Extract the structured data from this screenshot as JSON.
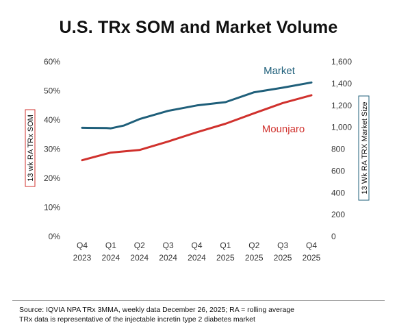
{
  "chart_data": {
    "type": "line",
    "title": "U.S. TRx SOM and Market Volume",
    "categories": [
      {
        "q": "Q4",
        "y": "2023"
      },
      {
        "q": "Q1",
        "y": "2024"
      },
      {
        "q": "Q2",
        "y": "2024"
      },
      {
        "q": "Q3",
        "y": "2024"
      },
      {
        "q": "Q4",
        "y": "2024"
      },
      {
        "q": "Q1",
        "y": "2025"
      },
      {
        "q": "Q2",
        "y": "2025"
      },
      {
        "q": "Q3",
        "y": "2025"
      },
      {
        "q": "Q4",
        "y": "2025"
      }
    ],
    "y_left": {
      "label": "13 wk RA TRx SOM",
      "min": 0,
      "max": 60,
      "ticks": [
        0,
        10,
        20,
        30,
        40,
        50,
        60
      ],
      "tick_labels": [
        "0%",
        "10%",
        "20%",
        "30%",
        "40%",
        "50%",
        "60%"
      ],
      "color": "#d0312d"
    },
    "y_right": {
      "label": "13 Wk RA TRX Market Size",
      "min": 0,
      "max": 1600,
      "ticks": [
        0,
        200,
        400,
        600,
        800,
        1000,
        1200,
        1400,
        1600
      ],
      "tick_labels": [
        "0",
        "200",
        "400",
        "600",
        "800",
        "1,000",
        "1,200",
        "1,400",
        "1,600"
      ],
      "color": "#1f5f7a"
    },
    "series": [
      {
        "name": "Market",
        "axis": "right",
        "color": "#1f5f7a",
        "x": [
          0,
          0.85,
          1.0,
          1.45,
          2.0,
          3.0,
          4.0,
          5.0,
          6.0,
          7.0,
          8.0
        ],
        "values": [
          995,
          993,
          990,
          1015,
          1075,
          1150,
          1200,
          1230,
          1320,
          1362,
          1410
        ]
      },
      {
        "name": "Mounjaro",
        "axis": "left",
        "color": "#d0312d",
        "x": [
          0,
          1.0,
          2.0,
          3.0,
          4.0,
          5.0,
          6.0,
          7.0,
          8.0
        ],
        "values": [
          26.2,
          28.8,
          29.7,
          32.6,
          35.8,
          38.7,
          42.3,
          45.8,
          48.5
        ]
      }
    ],
    "grid": false,
    "legend": "inline labels"
  },
  "footnote": {
    "line1": "Source: IQVIA NPA TRx 3MMA, weekly data December 26, 2025; RA = rolling average",
    "line2": "TRx data is representative of the injectable incretin type 2 diabetes market"
  }
}
